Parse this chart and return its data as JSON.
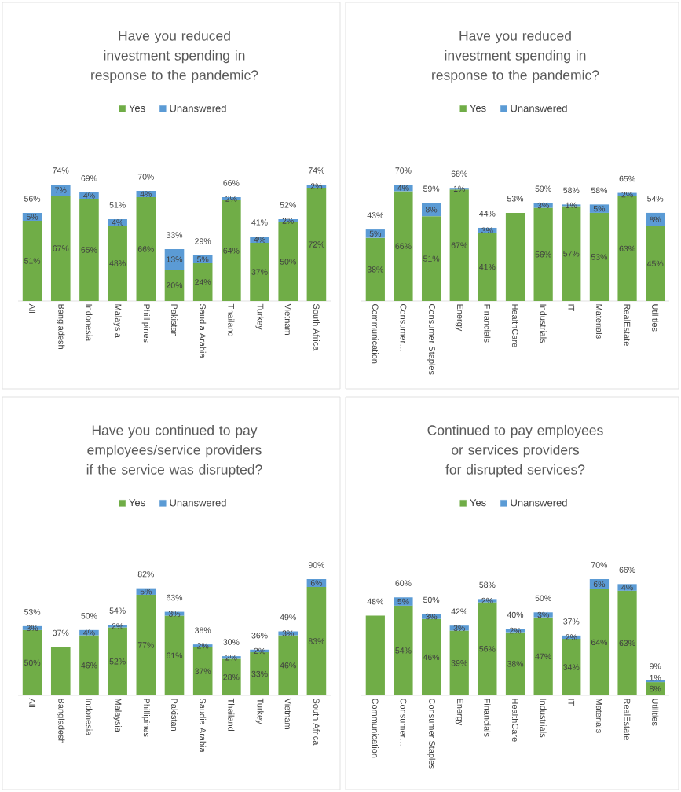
{
  "chart_data": [
    {
      "type": "bar",
      "stacked": true,
      "legend": "top",
      "title": "Have you reduced investment spending in response to the pandemic?",
      "categories": [
        "All",
        "Bangladesh",
        "Indonesia",
        "Malaysia",
        "Phillipines",
        "Pakistan",
        "Saudia Arabia",
        "Thailand",
        "Turkey",
        "Vietnam",
        "South Africa"
      ],
      "series": [
        {
          "name": "Yes",
          "color": "#70ad47",
          "values": [
            51,
            67,
            65,
            48,
            66,
            20,
            24,
            64,
            37,
            50,
            72
          ],
          "value_labels": [
            "51%",
            "67%",
            "65%",
            "48%",
            "66%",
            "20%",
            "24%",
            "64%",
            "37%",
            "50%",
            "72%"
          ]
        },
        {
          "name": "Unanswered",
          "color": "#5b9bd5",
          "values": [
            5,
            7,
            4,
            4,
            4,
            13,
            5,
            2,
            4,
            2,
            2
          ],
          "value_labels": [
            "5%",
            "7%",
            "4%",
            "4%",
            "4%",
            "13%",
            "5%",
            "2%",
            "4%",
            "2%",
            "2%"
          ]
        }
      ],
      "totals": [
        "56%",
        "74%",
        "69%",
        "51%",
        "70%",
        "33%",
        "29%",
        "66%",
        "41%",
        "52%",
        "74%"
      ]
    },
    {
      "type": "bar",
      "stacked": true,
      "legend": "top",
      "title": "Have you reduced investment spending in response to the pandemic?",
      "categories": [
        "Communication",
        "Consumer…",
        "Consumer Staples",
        "Energy",
        "Financials",
        "HealthCare",
        "Industrials",
        "IT",
        "Materials",
        "RealEstate",
        "Utilities"
      ],
      "series": [
        {
          "name": "Yes",
          "color": "#70ad47",
          "values": [
            38,
            66,
            51,
            67,
            41,
            53,
            56,
            57,
            53,
            63,
            45
          ],
          "value_labels": [
            "38%",
            "66%",
            "51%",
            "67%",
            "41%",
            null,
            "56%",
            "57%",
            "53%",
            "63%",
            "45%"
          ]
        },
        {
          "name": "Unanswered",
          "color": "#5b9bd5",
          "values": [
            5,
            4,
            8,
            1,
            3,
            null,
            3,
            1,
            5,
            2,
            8
          ],
          "value_labels": [
            "5%",
            "4%",
            "8%",
            "1%",
            "3%",
            null,
            "3%",
            "1%",
            "5%",
            "2%",
            "8%"
          ]
        }
      ],
      "totals": [
        "43%",
        "70%",
        "59%",
        "68%",
        "44%",
        "53%",
        "59%",
        "58%",
        "58%",
        "65%",
        "54%"
      ]
    },
    {
      "type": "bar",
      "stacked": true,
      "legend": "top",
      "title": "Have you continued to pay employees/service providers if the service was disrupted?",
      "categories": [
        "All",
        "Bangladesh",
        "Indonesia",
        "Malaysia",
        "Phillipines",
        "Pakistan",
        "Saudia Arabia",
        "Thailand",
        "Turkey",
        "Vietnam",
        "South Africa"
      ],
      "series": [
        {
          "name": "Yes",
          "color": "#70ad47",
          "values": [
            50,
            37,
            46,
            52,
            77,
            61,
            37,
            28,
            33,
            46,
            83
          ],
          "value_labels": [
            "50%",
            null,
            "46%",
            "52%",
            "77%",
            "61%",
            "37%",
            "28%",
            "33%",
            "46%",
            "83%"
          ]
        },
        {
          "name": "Unanswered",
          "color": "#5b9bd5",
          "values": [
            3,
            null,
            4,
            2,
            5,
            3,
            2,
            2,
            2,
            3,
            6
          ],
          "value_labels": [
            "3%",
            null,
            "4%",
            "2%",
            "5%",
            "3%",
            "2%",
            "2%",
            "2%",
            "3%",
            "6%"
          ]
        }
      ],
      "totals": [
        "53%",
        "37%",
        "50%",
        "54%",
        "82%",
        "63%",
        "38%",
        "30%",
        "36%",
        "49%",
        "90%"
      ]
    },
    {
      "type": "bar",
      "stacked": true,
      "legend": "top",
      "title": "Continued to pay employees or services providers for disrupted services?",
      "categories": [
        "Communication",
        "Consumer…",
        "Consumer Staples",
        "Energy",
        "Financials",
        "HealthCare",
        "Industrials",
        "IT",
        "Materials",
        "RealEstate",
        "Utilities"
      ],
      "series": [
        {
          "name": "Yes",
          "color": "#70ad47",
          "values": [
            48,
            54,
            46,
            39,
            56,
            38,
            47,
            34,
            64,
            63,
            8
          ],
          "value_labels": [
            null,
            "54%",
            "46%",
            "39%",
            "56%",
            "38%",
            "47%",
            "34%",
            "64%",
            "63%",
            "8%"
          ]
        },
        {
          "name": "Unanswered",
          "color": "#5b9bd5",
          "values": [
            null,
            5,
            3,
            3,
            2,
            2,
            3,
            2,
            6,
            4,
            1
          ],
          "value_labels": [
            null,
            "5%",
            "3%",
            "3%",
            "2%",
            "2%",
            "3%",
            "2%",
            "6%",
            "4%",
            "1%"
          ]
        }
      ],
      "totals": [
        "48%",
        "60%",
        "50%",
        "42%",
        "58%",
        "40%",
        "50%",
        "37%",
        "70%",
        "66%",
        "9%"
      ]
    }
  ]
}
